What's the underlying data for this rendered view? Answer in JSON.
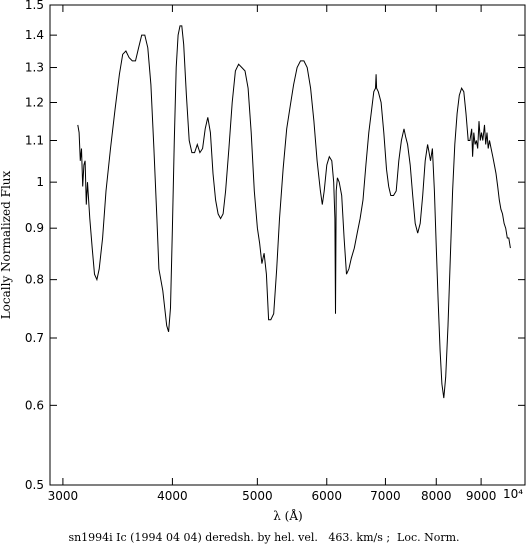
{
  "chart_data": {
    "type": "line",
    "title": "",
    "xlabel": "λ (Å)",
    "ylabel": "Locally Normalized Flux",
    "caption": "sn1994i Ic (1994 04 04) deredsh. by hel. vel.   463. km/s ;  Loc. Norm.",
    "x_scale": "log",
    "y_scale": "log",
    "xlim": [
      2900,
      10100
    ],
    "ylim": [
      0.5,
      1.5
    ],
    "x_ticks": [
      3000,
      4000,
      5000,
      6000,
      7000,
      8000,
      9000
    ],
    "x_tick_labels": [
      "3000",
      "4000",
      "5000",
      "6000",
      "7000",
      "8000",
      "9000"
    ],
    "x_exponent_label": "10⁴",
    "y_ticks": [
      0.5,
      0.6,
      0.7,
      0.8,
      0.9,
      1.0,
      1.1,
      1.2,
      1.3,
      1.4,
      1.5
    ],
    "y_tick_labels": [
      "0.5",
      "0.6",
      "0.7",
      "0.8",
      "0.9",
      "1",
      "1.1",
      "1.2",
      "1.3",
      "1.4",
      "1.5"
    ],
    "grid": false,
    "line_color": "#000000",
    "series": [
      {
        "points": [
          [
            3120,
            1.14
          ],
          [
            3130,
            1.12
          ],
          [
            3140,
            1.05
          ],
          [
            3150,
            1.08
          ],
          [
            3160,
            0.99
          ],
          [
            3170,
            1.04
          ],
          [
            3180,
            1.05
          ],
          [
            3190,
            0.95
          ],
          [
            3200,
            1.0
          ],
          [
            3220,
            0.92
          ],
          [
            3240,
            0.86
          ],
          [
            3260,
            0.81
          ],
          [
            3280,
            0.8
          ],
          [
            3300,
            0.82
          ],
          [
            3330,
            0.88
          ],
          [
            3360,
            0.98
          ],
          [
            3400,
            1.08
          ],
          [
            3440,
            1.18
          ],
          [
            3480,
            1.28
          ],
          [
            3510,
            1.34
          ],
          [
            3540,
            1.35
          ],
          [
            3570,
            1.33
          ],
          [
            3600,
            1.32
          ],
          [
            3630,
            1.32
          ],
          [
            3660,
            1.36
          ],
          [
            3690,
            1.4
          ],
          [
            3720,
            1.4
          ],
          [
            3750,
            1.36
          ],
          [
            3780,
            1.25
          ],
          [
            3810,
            1.08
          ],
          [
            3840,
            0.92
          ],
          [
            3860,
            0.82
          ],
          [
            3880,
            0.8
          ],
          [
            3900,
            0.78
          ],
          [
            3920,
            0.75
          ],
          [
            3940,
            0.72
          ],
          [
            3960,
            0.71
          ],
          [
            3980,
            0.75
          ],
          [
            4000,
            0.9
          ],
          [
            4020,
            1.1
          ],
          [
            4040,
            1.3
          ],
          [
            4060,
            1.4
          ],
          [
            4080,
            1.43
          ],
          [
            4100,
            1.43
          ],
          [
            4120,
            1.37
          ],
          [
            4150,
            1.22
          ],
          [
            4180,
            1.1
          ],
          [
            4210,
            1.07
          ],
          [
            4240,
            1.07
          ],
          [
            4270,
            1.09
          ],
          [
            4300,
            1.07
          ],
          [
            4330,
            1.08
          ],
          [
            4360,
            1.13
          ],
          [
            4390,
            1.16
          ],
          [
            4420,
            1.12
          ],
          [
            4450,
            1.02
          ],
          [
            4480,
            0.96
          ],
          [
            4510,
            0.93
          ],
          [
            4540,
            0.92
          ],
          [
            4570,
            0.93
          ],
          [
            4600,
            0.98
          ],
          [
            4640,
            1.08
          ],
          [
            4680,
            1.2
          ],
          [
            4720,
            1.29
          ],
          [
            4760,
            1.31
          ],
          [
            4800,
            1.3
          ],
          [
            4840,
            1.29
          ],
          [
            4880,
            1.24
          ],
          [
            4920,
            1.12
          ],
          [
            4960,
            0.98
          ],
          [
            5000,
            0.9
          ],
          [
            5030,
            0.87
          ],
          [
            5060,
            0.83
          ],
          [
            5090,
            0.85
          ],
          [
            5120,
            0.81
          ],
          [
            5150,
            0.73
          ],
          [
            5180,
            0.73
          ],
          [
            5220,
            0.74
          ],
          [
            5260,
            0.82
          ],
          [
            5300,
            0.92
          ],
          [
            5350,
            1.03
          ],
          [
            5400,
            1.13
          ],
          [
            5450,
            1.19
          ],
          [
            5500,
            1.25
          ],
          [
            5550,
            1.3
          ],
          [
            5600,
            1.32
          ],
          [
            5650,
            1.32
          ],
          [
            5700,
            1.3
          ],
          [
            5750,
            1.24
          ],
          [
            5800,
            1.15
          ],
          [
            5850,
            1.05
          ],
          [
            5900,
            0.98
          ],
          [
            5930,
            0.95
          ],
          [
            5960,
            0.98
          ],
          [
            6000,
            1.04
          ],
          [
            6040,
            1.06
          ],
          [
            6080,
            1.05
          ],
          [
            6110,
            1.0
          ],
          [
            6130,
            0.92
          ],
          [
            6140,
            0.74
          ],
          [
            6150,
            0.98
          ],
          [
            6170,
            1.01
          ],
          [
            6200,
            1.0
          ],
          [
            6240,
            0.97
          ],
          [
            6280,
            0.88
          ],
          [
            6320,
            0.81
          ],
          [
            6360,
            0.82
          ],
          [
            6400,
            0.84
          ],
          [
            6450,
            0.86
          ],
          [
            6500,
            0.89
          ],
          [
            6550,
            0.92
          ],
          [
            6600,
            0.96
          ],
          [
            6650,
            1.04
          ],
          [
            6700,
            1.12
          ],
          [
            6750,
            1.18
          ],
          [
            6790,
            1.23
          ],
          [
            6820,
            1.24
          ],
          [
            6830,
            1.28
          ],
          [
            6840,
            1.24
          ],
          [
            6870,
            1.23
          ],
          [
            6920,
            1.2
          ],
          [
            6970,
            1.12
          ],
          [
            7020,
            1.03
          ],
          [
            7060,
            0.99
          ],
          [
            7100,
            0.97
          ],
          [
            7150,
            0.97
          ],
          [
            7200,
            0.98
          ],
          [
            7250,
            1.05
          ],
          [
            7300,
            1.1
          ],
          [
            7350,
            1.13
          ],
          [
            7380,
            1.11
          ],
          [
            7420,
            1.09
          ],
          [
            7470,
            1.04
          ],
          [
            7520,
            0.97
          ],
          [
            7570,
            0.91
          ],
          [
            7620,
            0.89
          ],
          [
            7670,
            0.91
          ],
          [
            7720,
            0.97
          ],
          [
            7770,
            1.05
          ],
          [
            7820,
            1.09
          ],
          [
            7850,
            1.07
          ],
          [
            7880,
            1.05
          ],
          [
            7920,
            1.08
          ],
          [
            7960,
            0.98
          ],
          [
            8000,
            0.86
          ],
          [
            8040,
            0.76
          ],
          [
            8080,
            0.68
          ],
          [
            8120,
            0.63
          ],
          [
            8160,
            0.61
          ],
          [
            8200,
            0.64
          ],
          [
            8250,
            0.72
          ],
          [
            8300,
            0.84
          ],
          [
            8350,
            0.98
          ],
          [
            8400,
            1.09
          ],
          [
            8450,
            1.17
          ],
          [
            8500,
            1.22
          ],
          [
            8550,
            1.24
          ],
          [
            8600,
            1.23
          ],
          [
            8650,
            1.17
          ],
          [
            8700,
            1.1
          ],
          [
            8740,
            1.1
          ],
          [
            8780,
            1.13
          ],
          [
            8800,
            1.06
          ],
          [
            8830,
            1.12
          ],
          [
            8860,
            1.09
          ],
          [
            8890,
            1.1
          ],
          [
            8920,
            1.08
          ],
          [
            8950,
            1.15
          ],
          [
            8980,
            1.1
          ],
          [
            9010,
            1.12
          ],
          [
            9040,
            1.1
          ],
          [
            9080,
            1.14
          ],
          [
            9110,
            1.09
          ],
          [
            9140,
            1.12
          ],
          [
            9170,
            1.08
          ],
          [
            9200,
            1.1
          ],
          [
            9240,
            1.08
          ],
          [
            9280,
            1.06
          ],
          [
            9320,
            1.04
          ],
          [
            9360,
            1.02
          ],
          [
            9400,
            0.99
          ],
          [
            9440,
            0.96
          ],
          [
            9480,
            0.94
          ],
          [
            9520,
            0.93
          ],
          [
            9560,
            0.91
          ],
          [
            9600,
            0.9
          ],
          [
            9640,
            0.88
          ],
          [
            9680,
            0.88
          ],
          [
            9720,
            0.86
          ]
        ]
      }
    ]
  }
}
